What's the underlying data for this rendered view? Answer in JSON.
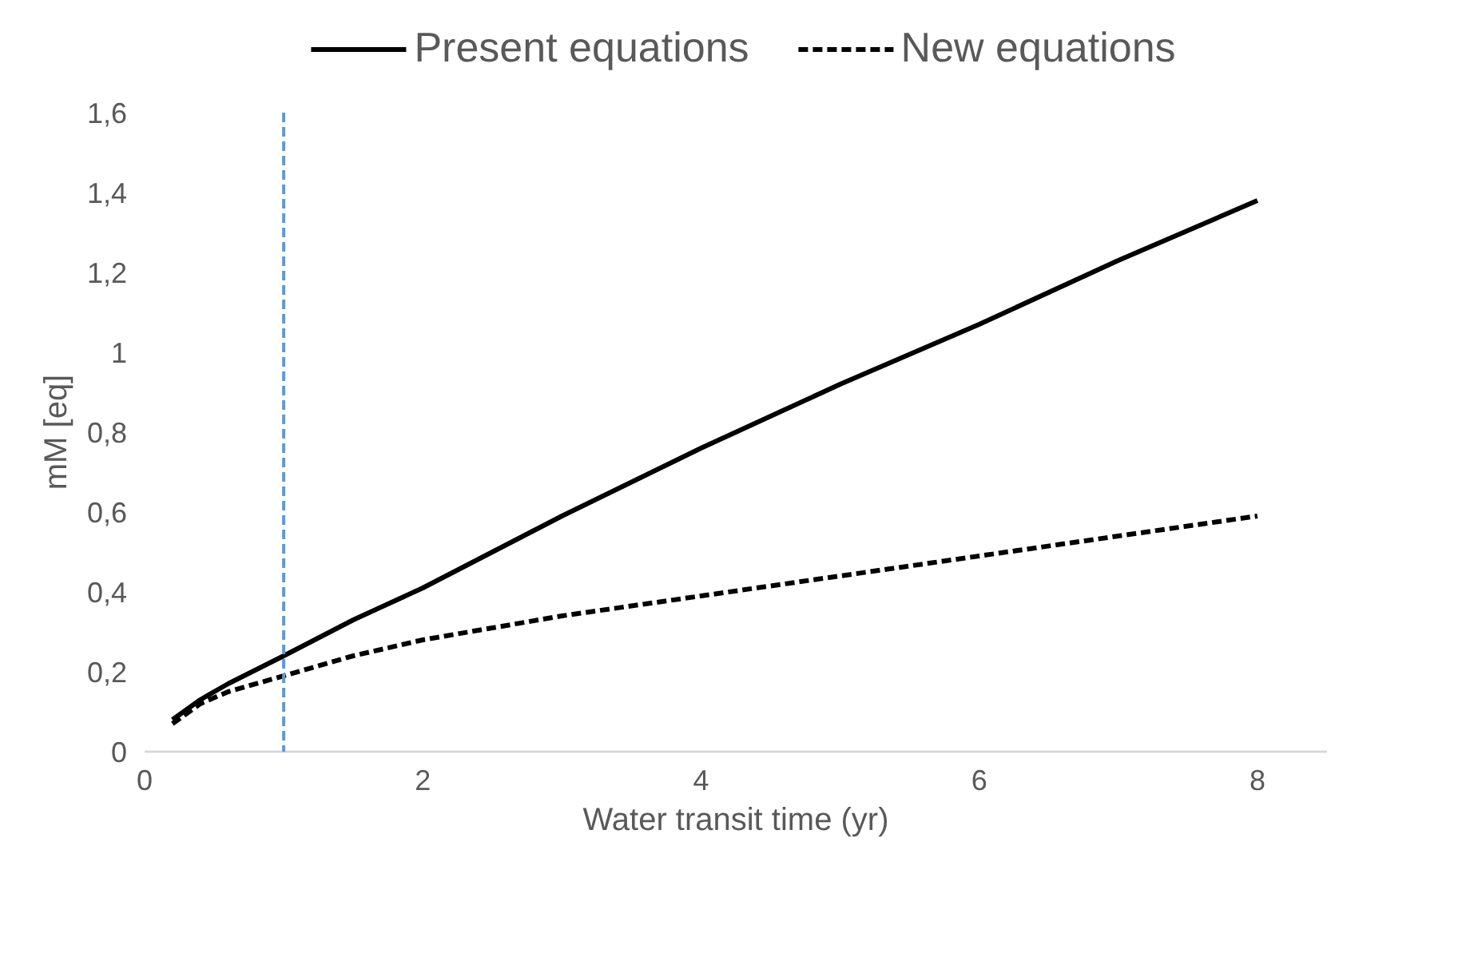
{
  "chart_data": {
    "type": "line",
    "xlabel": "Water transit time (yr)",
    "ylabel": "mM [eq]",
    "xlim": [
      0,
      8.5
    ],
    "ylim": [
      0,
      1.6
    ],
    "xticks": [
      0,
      2,
      4,
      6,
      8
    ],
    "yticks": [
      0,
      {
        "value": 0.2,
        "label": "0,2"
      },
      {
        "value": 0.4,
        "label": "0,4"
      },
      {
        "value": 0.6,
        "label": "0,6"
      },
      {
        "value": 0.8,
        "label": "0,8"
      },
      1,
      {
        "value": 1.2,
        "label": "1,2"
      },
      {
        "value": 1.4,
        "label": "1,4"
      },
      {
        "value": 1.6,
        "label": "1,6"
      }
    ],
    "grid": false,
    "legend": "top",
    "marker": "none",
    "series": [
      {
        "name": "Present equations",
        "color": "#000000",
        "line_style": "solid",
        "x": [
          0.2,
          0.4,
          0.6,
          1,
          1.5,
          2,
          3,
          4,
          5,
          6,
          7,
          8
        ],
        "values": [
          0.08,
          0.13,
          0.17,
          0.24,
          0.33,
          0.41,
          0.59,
          0.76,
          0.92,
          1.07,
          1.23,
          1.38
        ]
      },
      {
        "name": "New equations",
        "color": "#000000",
        "line_style": "dashed",
        "x": [
          0.2,
          0.4,
          0.6,
          1,
          1.5,
          2,
          3,
          4,
          5,
          6,
          7,
          8
        ],
        "values": [
          0.07,
          0.12,
          0.15,
          0.19,
          0.24,
          0.28,
          0.34,
          0.39,
          0.44,
          0.49,
          0.54,
          0.59
        ]
      }
    ],
    "ref_lines": [
      {
        "axis": "x",
        "value": 1,
        "color": "#5b9bd5",
        "line_style": "dashed"
      }
    ]
  }
}
